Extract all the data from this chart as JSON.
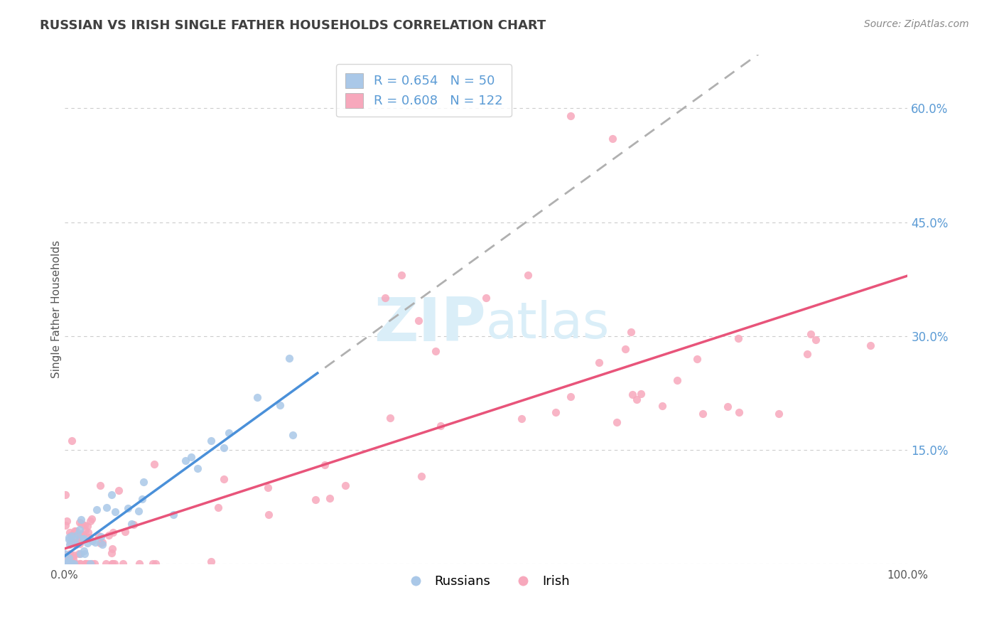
{
  "title": "RUSSIAN VS IRISH SINGLE FATHER HOUSEHOLDS CORRELATION CHART",
  "source": "Source: ZipAtlas.com",
  "ylabel": "Single Father Households",
  "ytick_vals": [
    0.0,
    0.15,
    0.3,
    0.45,
    0.6
  ],
  "ytick_labels": [
    "0.0%",
    "15.0%",
    "30.0%",
    "45.0%",
    "60.0%"
  ],
  "xlim": [
    0.0,
    1.0
  ],
  "ylim": [
    0.0,
    0.67
  ],
  "legend_russian_R": 0.654,
  "legend_russian_N": 50,
  "legend_irish_R": 0.608,
  "legend_irish_N": 122,
  "background_color": "#ffffff",
  "grid_color": "#cccccc",
  "russian_scatter_color": "#aac8e8",
  "irish_scatter_color": "#f7a8bc",
  "russian_line_color": "#4a90d9",
  "irish_line_color": "#e8547a",
  "dash_line_color": "#b0b0b0",
  "watermark_color": "#daeef8",
  "right_label_color": "#5b9bd5",
  "title_color": "#404040",
  "source_color": "#888888"
}
